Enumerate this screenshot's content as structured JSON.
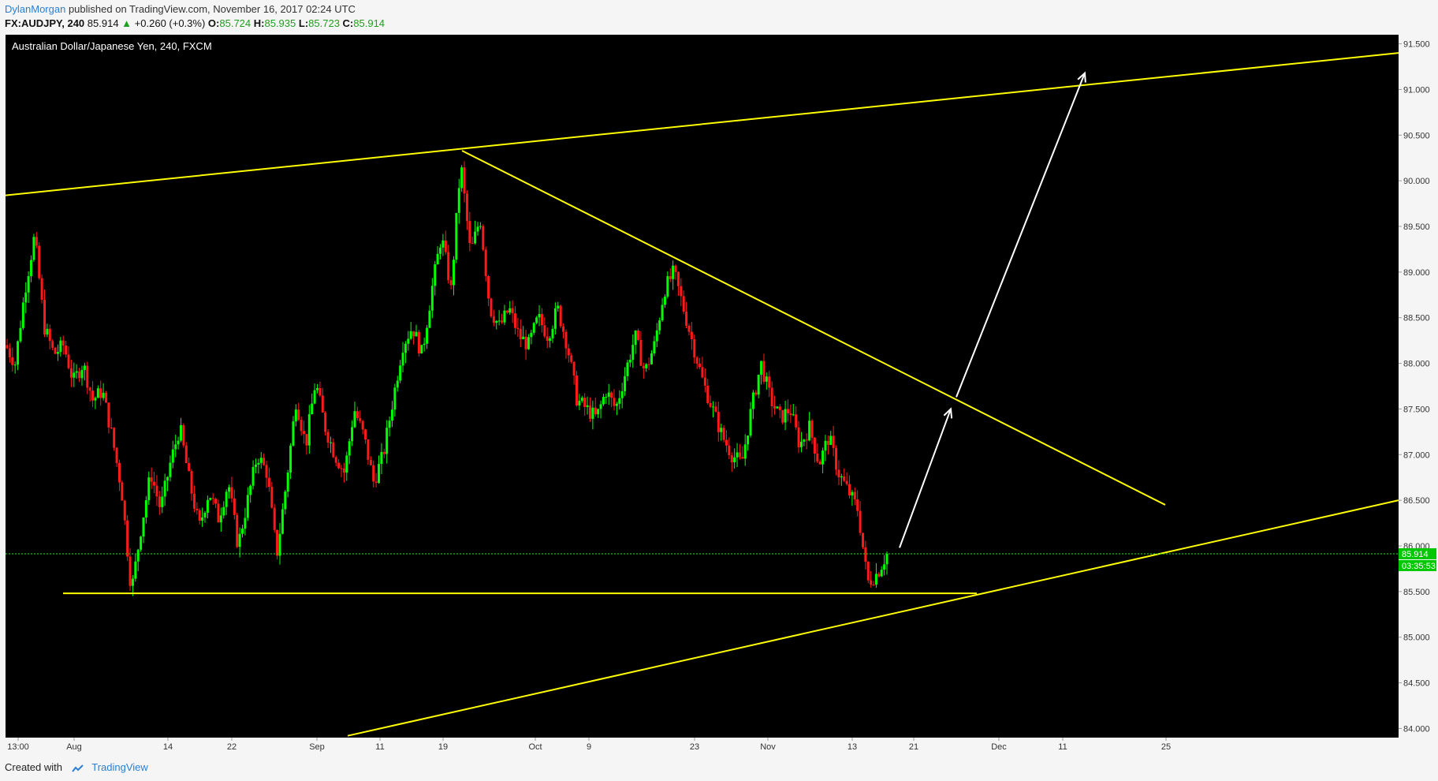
{
  "header": {
    "author": "DylanMorgan",
    "published": "published on TradingView.com, November 16, 2017 02:24 UTC",
    "symbol": "FX:AUDJPY, 240",
    "last": "85.914",
    "change": "+0.260 (+0.3%)",
    "o_label": "O:",
    "o_val": "85.724",
    "h_label": "H:",
    "h_val": "85.935",
    "l_label": "L:",
    "l_val": "85.723",
    "c_label": "C:",
    "c_val": "85.914"
  },
  "footer": {
    "created": "Created with",
    "brand": "TradingView"
  },
  "colors": {
    "background": "#000000",
    "up": "#00ff00",
    "down": "#ff1a1a",
    "trendline": "#ffff00",
    "arrow": "#ffffff",
    "axis_text": "#333333"
  },
  "chart_data": {
    "type": "candlestick",
    "title": "Australian Dollar/Japanese Yen, 240, FXCM",
    "ylim": [
      83.9,
      91.6
    ],
    "y_ticks": [
      "84.000",
      "84.500",
      "85.000",
      "85.500",
      "86.000",
      "86.500",
      "87.000",
      "87.500",
      "88.000",
      "88.500",
      "89.000",
      "89.500",
      "90.000",
      "90.500",
      "91.000",
      "91.500"
    ],
    "x_ticks": [
      "13:00",
      "Aug",
      "14",
      "22",
      "Sep",
      "11",
      "19",
      "Oct",
      "9",
      "23",
      "Nov",
      "13",
      "21",
      "Dec",
      "11",
      "25"
    ],
    "last_price_label": "85.914",
    "countdown_label": "03:35:53",
    "last_price": 85.914,
    "trendlines": [
      {
        "name": "upper-channel",
        "from": 89.84,
        "to": 91.4
      },
      {
        "name": "descending-resistance",
        "from": 90.33,
        "to": 86.45
      },
      {
        "name": "ascending-support",
        "from": 83.92,
        "to": 86.5
      },
      {
        "name": "horizontal-support",
        "value": 85.48
      }
    ],
    "arrows": [
      {
        "name": "arrow-short",
        "from": 85.98,
        "to": 87.5
      },
      {
        "name": "arrow-long",
        "from": 87.63,
        "to": 91.18
      }
    ],
    "price_path": [
      88.2,
      88.0,
      88.8,
      89.4,
      88.4,
      88.1,
      88.2,
      87.8,
      88.0,
      87.6,
      87.7,
      87.2,
      86.6,
      85.5,
      86.2,
      86.8,
      86.4,
      86.9,
      87.3,
      86.7,
      86.2,
      86.6,
      86.3,
      86.7,
      86.0,
      86.5,
      87.0,
      86.8,
      85.9,
      86.7,
      87.6,
      87.1,
      87.8,
      87.3,
      87.0,
      86.8,
      87.5,
      87.2,
      86.7,
      87.0,
      87.6,
      88.2,
      88.4,
      88.1,
      88.8,
      89.4,
      88.8,
      90.2,
      89.2,
      89.6,
      88.6,
      88.4,
      88.6,
      88.3,
      88.2,
      88.5,
      88.3,
      88.6,
      88.2,
      87.6,
      87.5,
      87.4,
      87.7,
      87.5,
      87.9,
      88.3,
      87.9,
      88.2,
      88.8,
      89.0,
      88.6,
      88.2,
      87.8,
      87.5,
      87.2,
      87.0,
      86.9,
      87.5,
      88.0,
      87.6,
      87.4,
      87.5,
      87.1,
      87.3,
      86.9,
      87.2,
      86.8,
      86.6,
      86.4,
      85.6,
      85.7,
      85.914
    ]
  }
}
